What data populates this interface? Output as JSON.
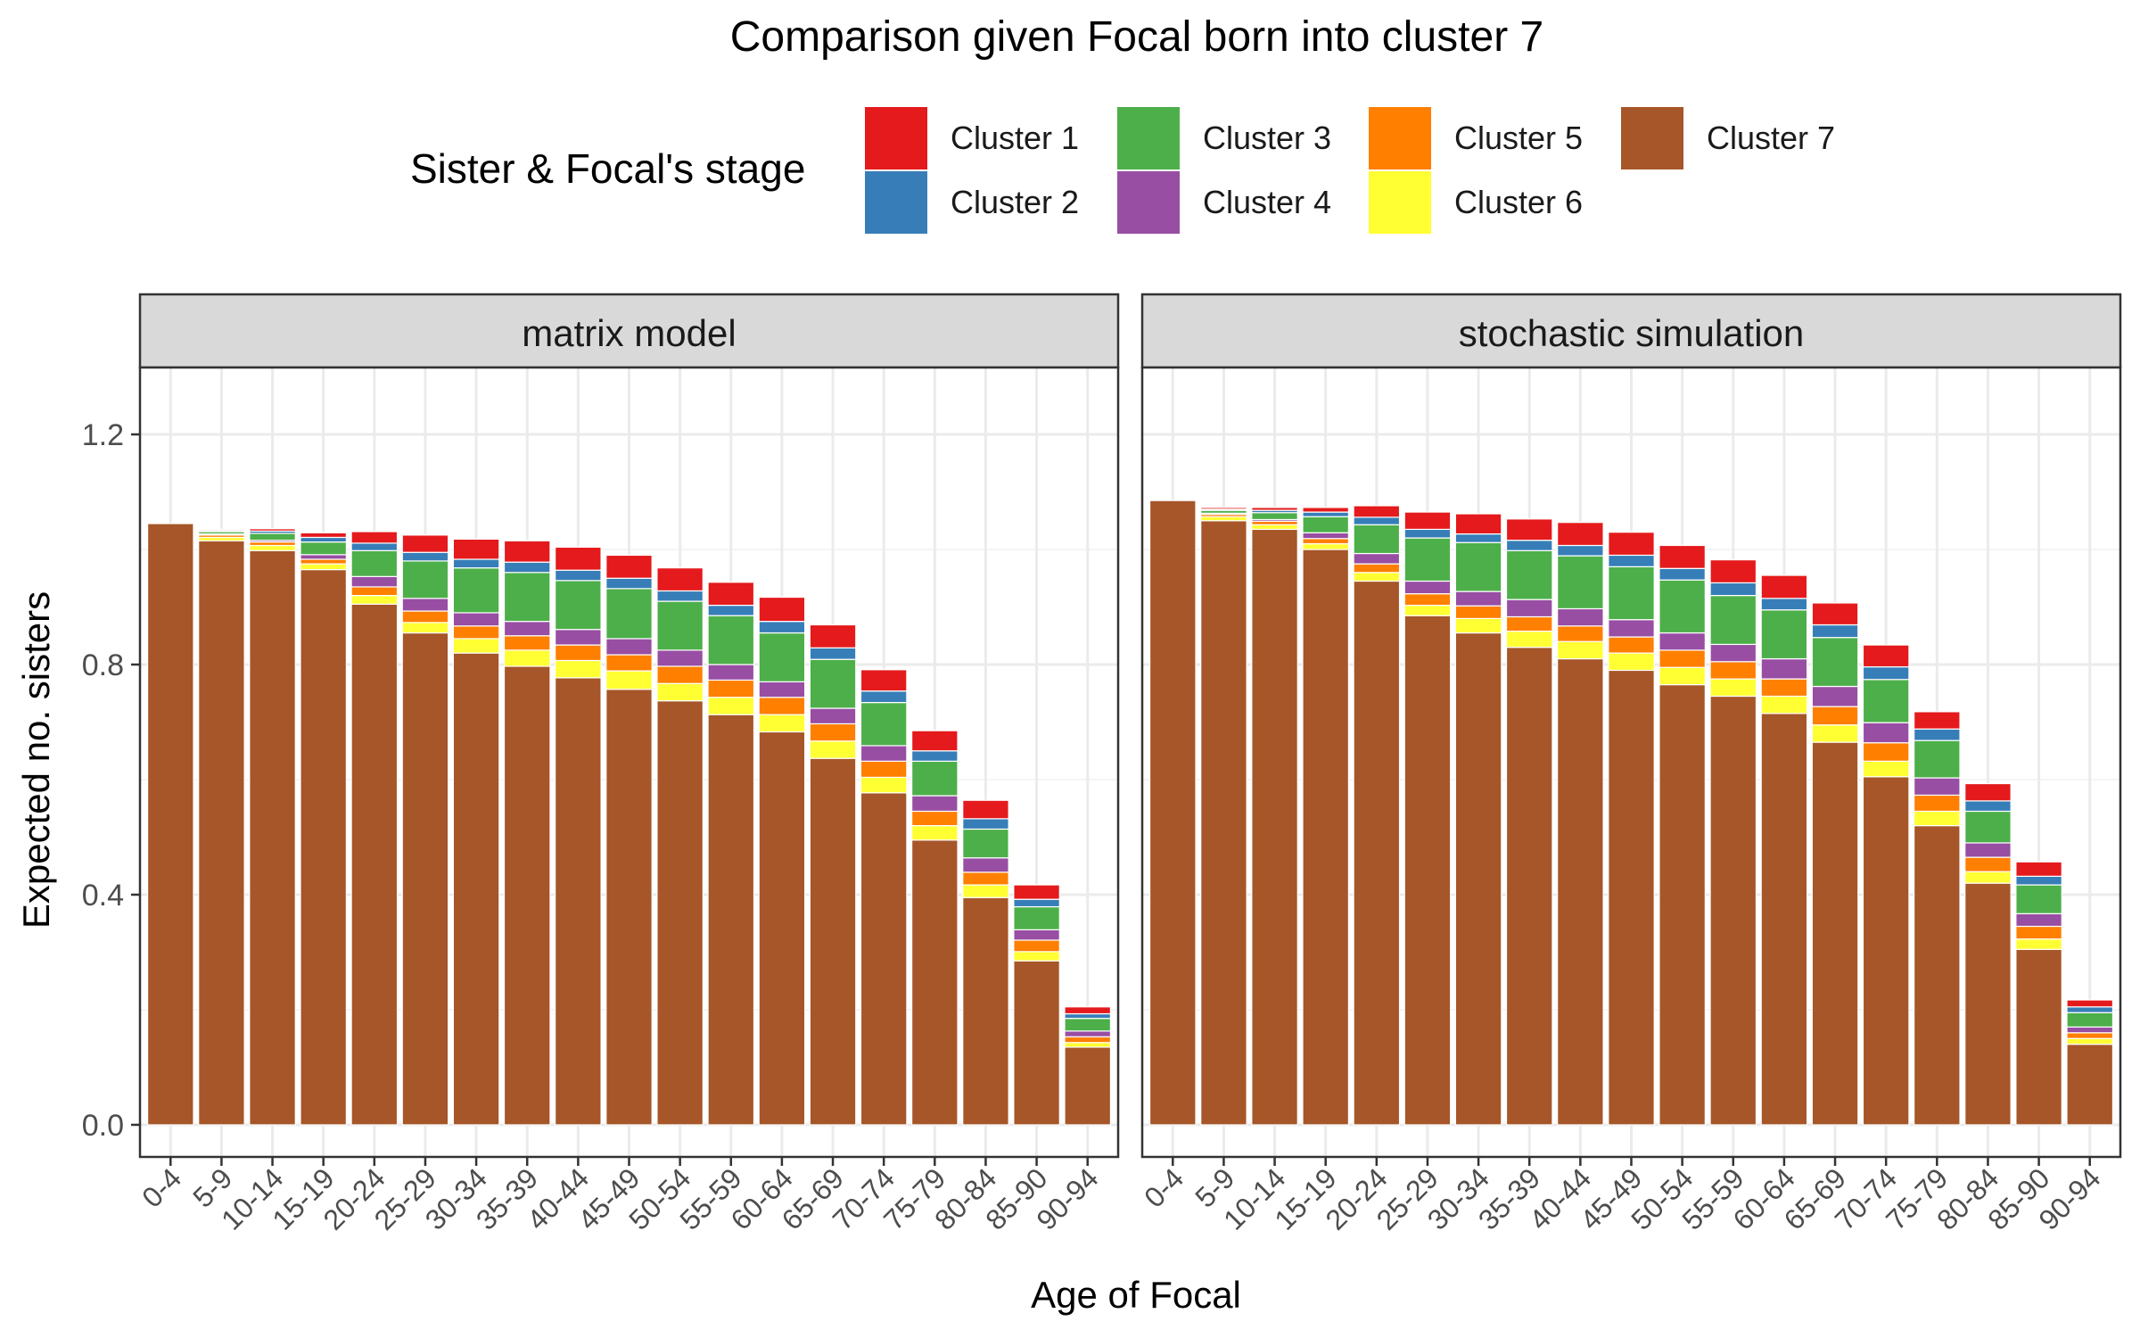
{
  "chart_data": {
    "type": "bar",
    "stacked": true,
    "title": "Comparison given Focal born into cluster 7",
    "xlabel": "Age of Focal",
    "ylabel": "Expected no. sisters",
    "ylim": [
      0,
      1.3
    ],
    "yticks": [
      0.0,
      0.4,
      0.8,
      1.2
    ],
    "ytick_labels": [
      "0.0",
      "0.4",
      "0.8",
      "1.2"
    ],
    "grid": true,
    "legend_title": "Sister & Focal's stage",
    "legend_position": "top",
    "categories": [
      "0-4",
      "5-9",
      "10-14",
      "15-19",
      "20-24",
      "25-29",
      "30-34",
      "35-39",
      "40-44",
      "45-49",
      "50-54",
      "55-59",
      "60-64",
      "65-69",
      "70-74",
      "75-79",
      "80-84",
      "85-90",
      "90-94"
    ],
    "stack_order": [
      "Cluster 7",
      "Cluster 6",
      "Cluster 5",
      "Cluster 4",
      "Cluster 3",
      "Cluster 2",
      "Cluster 1"
    ],
    "series_colors": {
      "Cluster 1": "#E41A1C",
      "Cluster 2": "#377EB8",
      "Cluster 3": "#4DAF4A",
      "Cluster 4": "#984EA3",
      "Cluster 5": "#FF7F00",
      "Cluster 6": "#FFFF33",
      "Cluster 7": "#A65628"
    },
    "legend_items": [
      "Cluster 1",
      "Cluster 2",
      "Cluster 3",
      "Cluster 4",
      "Cluster 5",
      "Cluster 6",
      "Cluster 7"
    ],
    "facets": [
      {
        "name": "matrix model",
        "series": [
          {
            "name": "Cluster 7",
            "values": [
              1.045,
              1.015,
              0.998,
              0.965,
              0.905,
              0.855,
              0.82,
              0.797,
              0.777,
              0.757,
              0.737,
              0.713,
              0.683,
              0.637,
              0.577,
              0.495,
              0.395,
              0.285,
              0.135
            ]
          },
          {
            "name": "Cluster 6",
            "values": [
              0.0,
              0.006,
              0.009,
              0.01,
              0.015,
              0.018,
              0.025,
              0.028,
              0.03,
              0.032,
              0.03,
              0.03,
              0.03,
              0.03,
              0.027,
              0.025,
              0.022,
              0.016,
              0.008
            ]
          },
          {
            "name": "Cluster 5",
            "values": [
              0.0,
              0.004,
              0.006,
              0.008,
              0.015,
              0.02,
              0.022,
              0.025,
              0.027,
              0.028,
              0.03,
              0.03,
              0.03,
              0.03,
              0.028,
              0.025,
              0.022,
              0.02,
              0.01
            ]
          },
          {
            "name": "Cluster 4",
            "values": [
              0.0,
              0.002,
              0.003,
              0.008,
              0.018,
              0.022,
              0.023,
              0.025,
              0.027,
              0.028,
              0.028,
              0.027,
              0.027,
              0.027,
              0.027,
              0.027,
              0.025,
              0.018,
              0.01
            ]
          },
          {
            "name": "Cluster 3",
            "values": [
              0.0,
              0.004,
              0.012,
              0.022,
              0.045,
              0.065,
              0.078,
              0.085,
              0.085,
              0.087,
              0.085,
              0.085,
              0.085,
              0.085,
              0.075,
              0.06,
              0.05,
              0.04,
              0.022
            ]
          },
          {
            "name": "Cluster 2",
            "values": [
              0.0,
              0.002,
              0.004,
              0.008,
              0.013,
              0.015,
              0.015,
              0.018,
              0.018,
              0.018,
              0.018,
              0.018,
              0.02,
              0.02,
              0.02,
              0.018,
              0.018,
              0.013,
              0.008
            ]
          },
          {
            "name": "Cluster 1",
            "values": [
              0.0,
              0.002,
              0.004,
              0.008,
              0.02,
              0.03,
              0.035,
              0.037,
              0.04,
              0.04,
              0.04,
              0.04,
              0.042,
              0.04,
              0.037,
              0.035,
              0.032,
              0.025,
              0.012
            ]
          }
        ]
      },
      {
        "name": "stochastic simulation",
        "series": [
          {
            "name": "Cluster 7",
            "values": [
              1.085,
              1.05,
              1.035,
              1.0,
              0.945,
              0.885,
              0.855,
              0.83,
              0.81,
              0.79,
              0.765,
              0.745,
              0.715,
              0.665,
              0.605,
              0.52,
              0.42,
              0.305,
              0.14
            ]
          },
          {
            "name": "Cluster 6",
            "values": [
              0.0,
              0.007,
              0.008,
              0.01,
              0.015,
              0.018,
              0.025,
              0.028,
              0.03,
              0.03,
              0.03,
              0.03,
              0.03,
              0.03,
              0.027,
              0.025,
              0.02,
              0.018,
              0.01
            ]
          },
          {
            "name": "Cluster 5",
            "values": [
              0.0,
              0.004,
              0.006,
              0.009,
              0.015,
              0.02,
              0.022,
              0.025,
              0.027,
              0.028,
              0.03,
              0.03,
              0.03,
              0.032,
              0.032,
              0.028,
              0.025,
              0.022,
              0.01
            ]
          },
          {
            "name": "Cluster 4",
            "values": [
              0.0,
              0.002,
              0.003,
              0.01,
              0.018,
              0.022,
              0.025,
              0.03,
              0.03,
              0.03,
              0.03,
              0.03,
              0.035,
              0.035,
              0.035,
              0.03,
              0.025,
              0.022,
              0.01
            ]
          },
          {
            "name": "Cluster 3",
            "values": [
              0.0,
              0.005,
              0.012,
              0.028,
              0.05,
              0.075,
              0.085,
              0.085,
              0.092,
              0.092,
              0.092,
              0.085,
              0.085,
              0.085,
              0.075,
              0.065,
              0.055,
              0.05,
              0.025
            ]
          },
          {
            "name": "Cluster 2",
            "values": [
              0.0,
              0.002,
              0.004,
              0.008,
              0.013,
              0.015,
              0.015,
              0.018,
              0.018,
              0.02,
              0.02,
              0.022,
              0.02,
              0.022,
              0.022,
              0.02,
              0.018,
              0.015,
              0.01
            ]
          },
          {
            "name": "Cluster 1",
            "values": [
              0.0,
              0.003,
              0.005,
              0.008,
              0.02,
              0.03,
              0.035,
              0.037,
              0.04,
              0.04,
              0.04,
              0.04,
              0.04,
              0.038,
              0.038,
              0.03,
              0.03,
              0.025,
              0.012
            ]
          }
        ]
      }
    ]
  }
}
